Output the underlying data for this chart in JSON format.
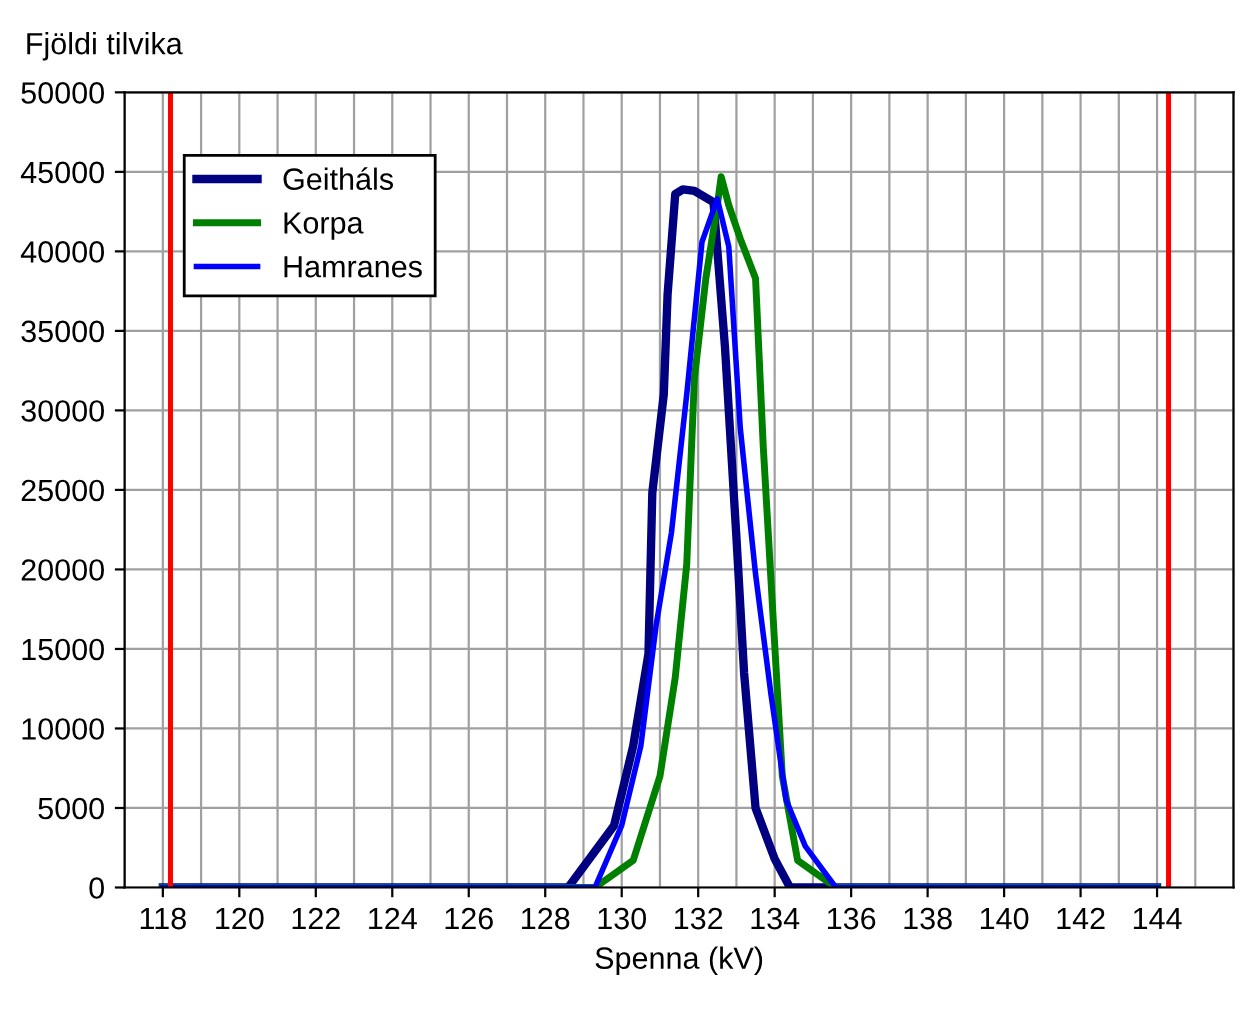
{
  "chart_data": {
    "type": "line",
    "ylabel": "Fjöldi tilvika",
    "xlabel": "Spenna (kV)",
    "xlim": [
      117,
      146
    ],
    "xticks": [
      118,
      120,
      122,
      124,
      126,
      128,
      130,
      132,
      134,
      136,
      138,
      140,
      142,
      144
    ],
    "ylim": [
      0,
      50000
    ],
    "yticks": [
      0,
      5000,
      10000,
      15000,
      20000,
      25000,
      30000,
      35000,
      40000,
      45000,
      50000
    ],
    "grid": true,
    "legend": "top left",
    "line_style": "solid",
    "marker": "none",
    "series": [
      {
        "name": "Geitháls",
        "color": "#000080",
        "x": [
          118,
          128.6,
          129.8,
          130.3,
          130.7,
          130.8,
          131.1,
          131.2,
          131.4,
          131.6,
          131.9,
          132.4,
          132.5,
          132.7,
          133.0,
          133.2,
          133.5,
          134.0,
          134.4,
          144
        ],
        "values": [
          0,
          0,
          3900,
          8900,
          14700,
          24800,
          31000,
          37300,
          43600,
          43900,
          43800,
          43100,
          40100,
          34000,
          22000,
          13500,
          5000,
          1800,
          0,
          0
        ]
      },
      {
        "name": "Korpa",
        "color": "#008000",
        "x": [
          118,
          129.3,
          130.3,
          131.0,
          131.4,
          131.7,
          131.9,
          132.2,
          132.5,
          132.6,
          132.8,
          133.1,
          133.5,
          133.7,
          134.0,
          134.2,
          134.6,
          135.6,
          144
        ],
        "values": [
          0,
          0,
          1700,
          7000,
          13200,
          20300,
          32000,
          38300,
          42900,
          44700,
          42900,
          40800,
          38300,
          27800,
          15300,
          7000,
          1700,
          0,
          0
        ]
      },
      {
        "name": "Hamranes",
        "color": "#0000ff",
        "x": [
          118,
          129.3,
          130.0,
          130.5,
          130.9,
          131.3,
          131.7,
          132.1,
          132.5,
          132.8,
          133.1,
          133.5,
          133.9,
          134.3,
          134.8,
          135.6,
          144
        ],
        "values": [
          0,
          0,
          3900,
          8900,
          16500,
          22300,
          31000,
          40600,
          43300,
          40300,
          28900,
          19700,
          12200,
          5500,
          2600,
          0,
          0
        ]
      }
    ],
    "ref_lines": [
      {
        "axis": "x",
        "value": 118.2,
        "color": "#ff0000"
      },
      {
        "axis": "x",
        "value": 144.3,
        "color": "#ff0000"
      }
    ]
  }
}
